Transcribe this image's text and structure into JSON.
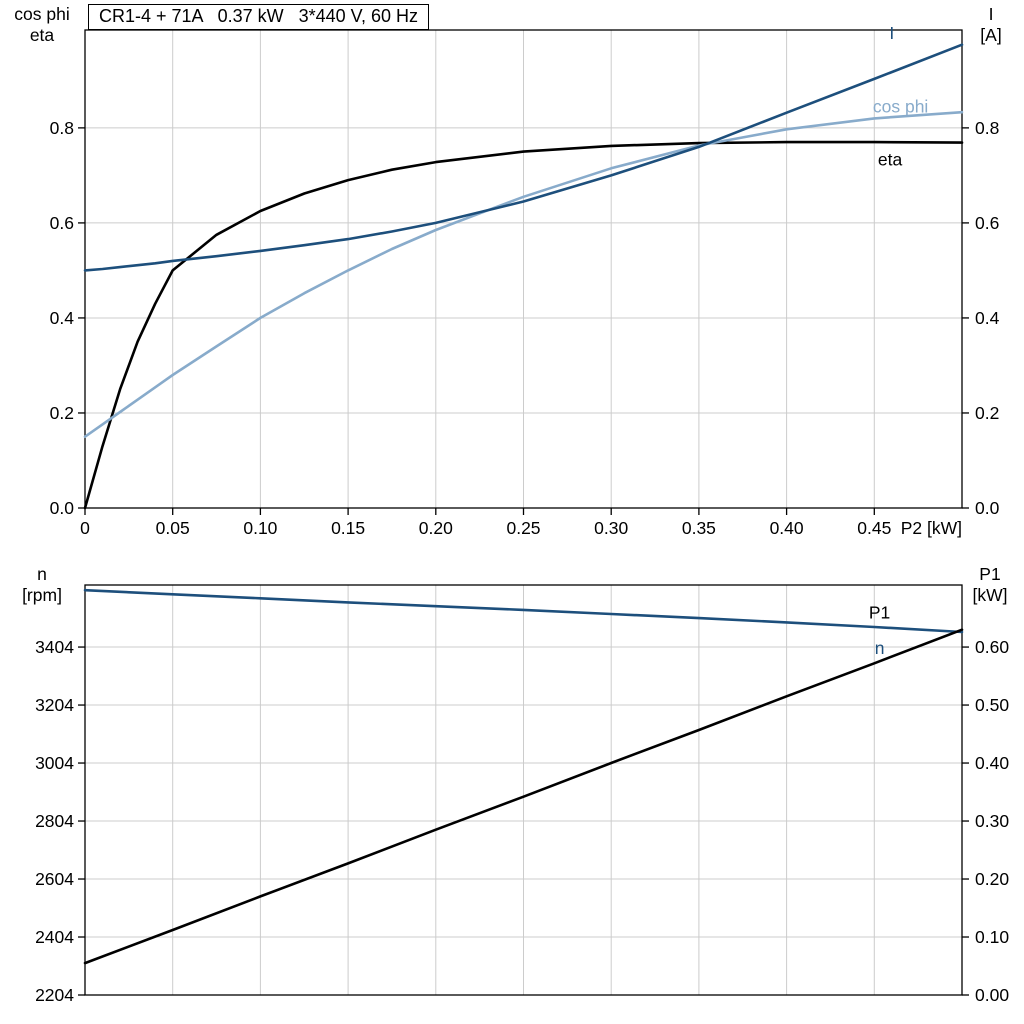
{
  "title_box": {
    "text": "CR1-4 + 71A   0.37 kW   3*440 V, 60 Hz"
  },
  "colors": {
    "dark_blue": "#1d4f7c",
    "light_blue": "#88abcb",
    "black": "#000000",
    "grid": "#cccccc",
    "axis": "#000000",
    "background": "#ffffff"
  },
  "chart_data": [
    {
      "id": "upper",
      "type": "line",
      "xlabel": "P2 [kW]",
      "left_axis_title": [
        "cos phi",
        "eta"
      ],
      "right_axis_title": [
        "I",
        "[A]"
      ],
      "xlim": [
        0,
        0.5
      ],
      "ylim_left": [
        0,
        1.006
      ],
      "ylim_right": [
        0,
        1.006
      ],
      "grid": true,
      "legend_position": "inline-labels",
      "xticks": [
        0,
        0.05,
        0.1,
        0.15,
        0.2,
        0.25,
        0.3,
        0.35,
        0.4,
        0.45
      ],
      "xtick_labels": [
        "0",
        "0.05",
        "0.10",
        "0.15",
        "0.20",
        "0.25",
        "0.30",
        "0.35",
        "0.40",
        "0.45"
      ],
      "yticks_left": [
        0,
        0.2,
        0.4,
        0.6,
        0.8
      ],
      "ytick_labels_left": [
        "0.0",
        "0.2",
        "0.4",
        "0.6",
        "0.8"
      ],
      "yticks_right": [
        0,
        0.2,
        0.4,
        0.6,
        0.8
      ],
      "ytick_labels_right": [
        "0.0",
        "0.2",
        "0.4",
        "0.6",
        "0.8"
      ],
      "x": [
        0,
        0.01,
        0.02,
        0.03,
        0.04,
        0.05,
        0.075,
        0.1,
        0.125,
        0.15,
        0.175,
        0.2,
        0.25,
        0.3,
        0.35,
        0.4,
        0.45,
        0.5
      ],
      "series": [
        {
          "name": "eta",
          "axis": "left",
          "color": "black",
          "label_pos": {
            "x": 0.459,
            "y": 0.733
          },
          "values": [
            0,
            0.13,
            0.25,
            0.35,
            0.43,
            0.5,
            0.575,
            0.625,
            0.662,
            0.69,
            0.712,
            0.728,
            0.75,
            0.762,
            0.768,
            0.77,
            0.77,
            0.769
          ]
        },
        {
          "name": "cos phi",
          "axis": "left",
          "color": "light_blue",
          "label_pos": {
            "x": 0.465,
            "y": 0.845
          },
          "values": [
            0.15,
            0.176,
            0.202,
            0.228,
            0.254,
            0.28,
            0.34,
            0.4,
            0.452,
            0.5,
            0.545,
            0.585,
            0.655,
            0.715,
            0.763,
            0.797,
            0.82,
            0.833
          ]
        },
        {
          "name": "I",
          "axis": "left",
          "color": "dark_blue",
          "label_pos": {
            "x": 0.46,
            "y": 1.0
          },
          "values": [
            0.5,
            0.503,
            0.507,
            0.511,
            0.515,
            0.52,
            0.53,
            0.541,
            0.553,
            0.566,
            0.582,
            0.6,
            0.645,
            0.7,
            0.76,
            0.832,
            0.903,
            0.975
          ]
        }
      ]
    },
    {
      "id": "lower",
      "type": "line",
      "left_axis_title": [
        "n",
        "[rpm]"
      ],
      "right_axis_title": [
        "P1",
        "[kW]"
      ],
      "xlim": [
        0,
        0.5
      ],
      "ylim_left": [
        2204,
        3618
      ],
      "ylim_right": [
        0,
        0.707
      ],
      "grid": true,
      "legend_position": "inline-labels",
      "xticks": [
        0,
        0.05,
        0.1,
        0.15,
        0.2,
        0.25,
        0.3,
        0.35,
        0.4,
        0.45
      ],
      "yticks_left": [
        2204,
        2404,
        2604,
        2804,
        3004,
        3204,
        3404
      ],
      "ytick_labels_left": [
        "2204",
        "2404",
        "2604",
        "2804",
        "3004",
        "3204",
        "3404"
      ],
      "yticks_right": [
        0,
        0.1,
        0.2,
        0.3,
        0.4,
        0.5,
        0.6
      ],
      "ytick_labels_right": [
        "0.00",
        "0.10",
        "0.20",
        "0.30",
        "0.40",
        "0.50",
        "0.60"
      ],
      "x": [
        0,
        0.05,
        0.1,
        0.15,
        0.2,
        0.25,
        0.3,
        0.35,
        0.4,
        0.45,
        0.5
      ],
      "series": [
        {
          "name": "n",
          "axis": "left",
          "color": "dark_blue",
          "label_pos": {
            "x": 0.453,
            "y": 3400
          },
          "values": [
            3600,
            3586,
            3572,
            3558,
            3545,
            3532,
            3518,
            3504,
            3489,
            3473,
            3456
          ]
        },
        {
          "name": "P1",
          "axis": "right",
          "color": "black",
          "label_pos": {
            "x": 0.453,
            "y": 0.66
          },
          "values": [
            0.055,
            0.112,
            0.17,
            0.227,
            0.285,
            0.342,
            0.4,
            0.457,
            0.515,
            0.572,
            0.63
          ]
        }
      ]
    }
  ]
}
